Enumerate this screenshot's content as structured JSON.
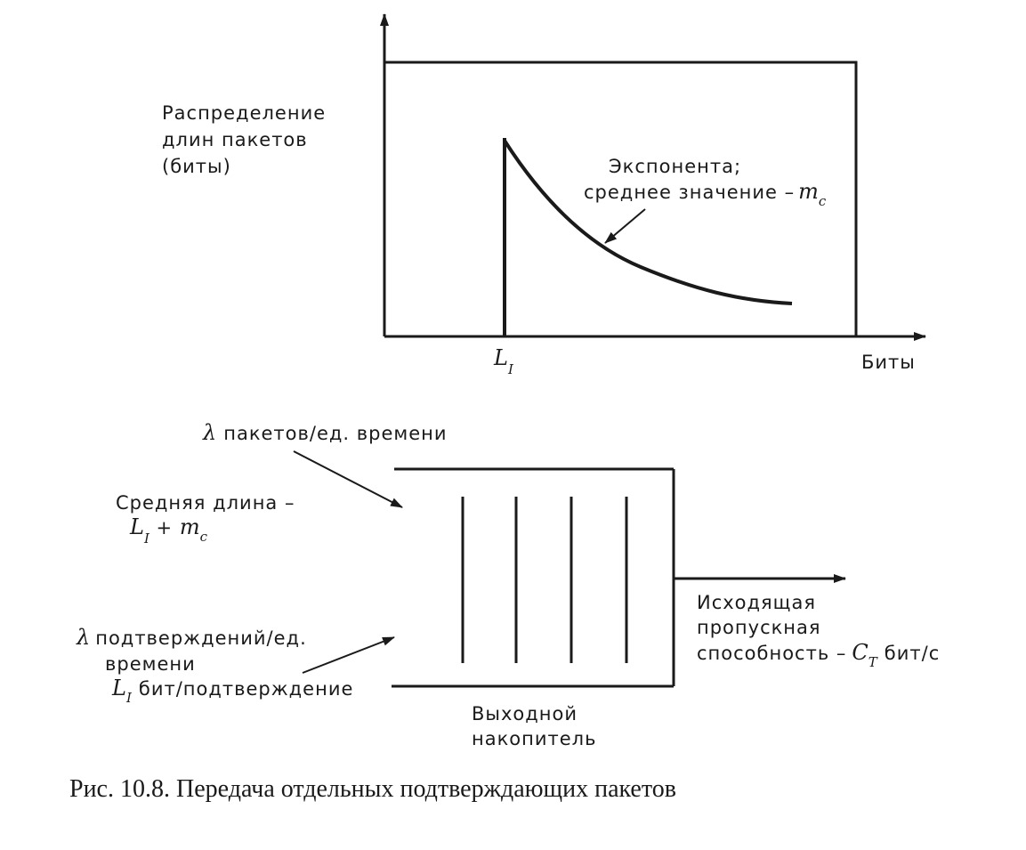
{
  "top_chart": {
    "y_label": [
      "Распределение",
      "длин пакетов",
      "(биты)"
    ],
    "x_label": "Биты",
    "tick_label": {
      "main": "L",
      "sub": "I"
    },
    "curve_label": [
      "Экспонента;",
      "среднее значение –"
    ],
    "curve_label_var": {
      "main": "m",
      "sub": "c"
    }
  },
  "bottom_diagram": {
    "packets_rate": {
      "symbol": "λ",
      "text": "пакетов/ед. времени"
    },
    "mean_length": {
      "text": "Средняя длина –",
      "formula_main1": "L",
      "formula_sub1": "I",
      "formula_plus": " + ",
      "formula_main2": "m",
      "formula_sub2": "c"
    },
    "ack_rate": {
      "symbol": "λ",
      "line1": "подтверждений/ед.",
      "line2": "времени",
      "l_main": "L",
      "l_sub": "I",
      "line3": "бит/подтверждение"
    },
    "output_capacity": {
      "line1": "Исходящая",
      "line2": "пропускная",
      "line3": "способность –",
      "c_main": "C",
      "c_sub": "T",
      "unit": "бит/с"
    },
    "buffer_label": [
      "Выходной",
      "накопитель"
    ]
  },
  "caption": "Рис. 10.8. Передача отдельных подтверждающих пакетов"
}
